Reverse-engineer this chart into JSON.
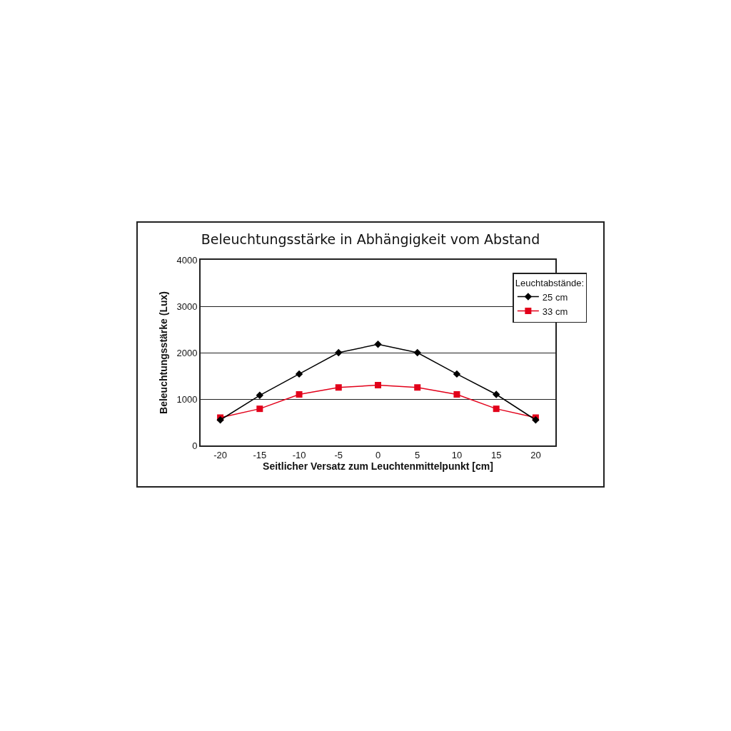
{
  "chart_data": {
    "type": "line",
    "title": "Beleuchtungsstärke in Abhängigkeit vom Abstand",
    "xlabel": "Seitlicher Versatz zum Leuchtenmittelpunkt [cm]",
    "ylabel": "Beleuchtungsstärke (Lux)",
    "legend_title": "Leuchtabstände:",
    "categories": [
      "-20",
      "-15",
      "-10",
      "-5",
      "0",
      "5",
      "10",
      "15",
      "20"
    ],
    "series": [
      {
        "name": "25 cm",
        "color": "#000000",
        "marker": "diamond",
        "values": [
          550,
          1080,
          1540,
          2000,
          2180,
          2000,
          1540,
          1100,
          550
        ]
      },
      {
        "name": "33 cm",
        "color": "#e2001a",
        "marker": "square",
        "values": [
          600,
          790,
          1100,
          1250,
          1300,
          1250,
          1100,
          790,
          600
        ]
      }
    ],
    "ylim": [
      0,
      4000
    ],
    "yticks": [
      0,
      1000,
      2000,
      3000,
      4000
    ],
    "grid": "y",
    "legend": "top right",
    "line_style": "solid"
  }
}
